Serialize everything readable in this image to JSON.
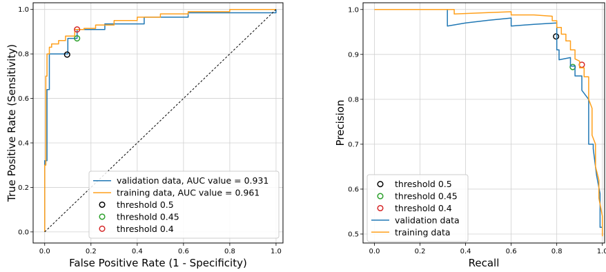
{
  "chart_data": [
    {
      "type": "line",
      "title": "",
      "xlabel": "False Positive Rate (1 - Specificity)",
      "ylabel": "True Positive Rate (Sensitivity)",
      "xlim": [
        -0.05,
        1.03
      ],
      "ylim": [
        -0.05,
        1.03
      ],
      "xticks": [
        0.0,
        0.2,
        0.4,
        0.6,
        0.8,
        1.0
      ],
      "yticks": [
        0.0,
        0.2,
        0.4,
        0.6,
        0.8,
        1.0
      ],
      "tick_labels": {
        "x": [
          "0.0",
          "0.2",
          "0.4",
          "0.6",
          "0.8",
          "1.0"
        ],
        "y": [
          "0.0",
          "0.2",
          "0.4",
          "0.6",
          "0.8",
          "1.0"
        ]
      },
      "grid": true,
      "legend_position": "lower-right",
      "series": [
        {
          "name": "validation data, AUC value = 0.931",
          "kind": "line",
          "color": "#1f77b4",
          "x": [
            0.0,
            0.0,
            0.01,
            0.01,
            0.02,
            0.02,
            0.04,
            0.04,
            0.1,
            0.1,
            0.14,
            0.14,
            0.26,
            0.26,
            0.43,
            0.43,
            0.62,
            0.62,
            1.0,
            1.0
          ],
          "y": [
            0.0,
            0.32,
            0.32,
            0.64,
            0.64,
            0.8,
            0.8,
            0.8,
            0.8,
            0.87,
            0.87,
            0.91,
            0.91,
            0.935,
            0.935,
            0.965,
            0.965,
            0.985,
            0.985,
            1.0
          ]
        },
        {
          "name": "training data, AUC value = 0.961",
          "kind": "line",
          "color": "#ff9f1a",
          "x": [
            0.0,
            0.0,
            0.005,
            0.005,
            0.01,
            0.01,
            0.02,
            0.02,
            0.03,
            0.03,
            0.06,
            0.06,
            0.09,
            0.09,
            0.13,
            0.13,
            0.17,
            0.17,
            0.22,
            0.22,
            0.3,
            0.3,
            0.4,
            0.4,
            0.5,
            0.5,
            0.62,
            0.62,
            0.8,
            0.8,
            1.0
          ],
          "y": [
            0.0,
            0.3,
            0.3,
            0.7,
            0.7,
            0.8,
            0.8,
            0.83,
            0.83,
            0.845,
            0.845,
            0.86,
            0.86,
            0.88,
            0.88,
            0.91,
            0.91,
            0.915,
            0.915,
            0.93,
            0.93,
            0.95,
            0.95,
            0.965,
            0.965,
            0.98,
            0.98,
            0.99,
            0.99,
            1.0,
            1.0
          ]
        },
        {
          "name": "threshold 0.5",
          "kind": "marker",
          "color": "#000000",
          "x": [
            0.097
          ],
          "y": [
            0.797
          ]
        },
        {
          "name": "threshold 0.45",
          "kind": "marker",
          "color": "#2ca02c",
          "x": [
            0.14
          ],
          "y": [
            0.87
          ]
        },
        {
          "name": "threshold 0.4",
          "kind": "marker",
          "color": "#d62728",
          "x": [
            0.14
          ],
          "y": [
            0.91
          ]
        },
        {
          "kind": "reference",
          "color": "#000000",
          "x": [
            0.0,
            1.0
          ],
          "y": [
            0.0,
            1.0
          ]
        }
      ]
    },
    {
      "type": "line",
      "title": "",
      "xlabel": "Recall",
      "ylabel": "Precision",
      "xlim": [
        -0.05,
        1.01
      ],
      "ylim": [
        0.48,
        1.015
      ],
      "xticks": [
        0.0,
        0.2,
        0.4,
        0.6,
        0.8,
        1.0
      ],
      "yticks": [
        0.5,
        0.6,
        0.7,
        0.8,
        0.9,
        1.0
      ],
      "tick_labels": {
        "x": [
          "0.0",
          "0.2",
          "0.4",
          "0.6",
          "0.8",
          "1.0"
        ],
        "y": [
          "0.5",
          "0.6",
          "0.7",
          "0.8",
          "0.9",
          "1.0"
        ]
      },
      "grid": true,
      "legend_position": "lower-left",
      "series": [
        {
          "name": "threshold 0.5",
          "kind": "marker",
          "color": "#000000",
          "x": [
            0.797
          ],
          "y": [
            0.94
          ]
        },
        {
          "name": "threshold 0.45",
          "kind": "marker",
          "color": "#2ca02c",
          "x": [
            0.87
          ],
          "y": [
            0.872
          ]
        },
        {
          "name": "threshold 0.4",
          "kind": "marker",
          "color": "#d62728",
          "x": [
            0.91
          ],
          "y": [
            0.877
          ]
        },
        {
          "name": "validation data",
          "kind": "line",
          "color": "#1f77b4",
          "x": [
            0.0,
            0.32,
            0.32,
            0.4,
            0.5,
            0.6,
            0.6,
            0.7,
            0.8,
            0.8,
            0.81,
            0.81,
            0.86,
            0.86,
            0.88,
            0.88,
            0.91,
            0.91,
            0.94,
            0.94,
            0.96,
            0.96,
            0.975,
            0.975,
            0.99,
            0.99,
            1.0
          ],
          "y": [
            1.0,
            1.0,
            0.963,
            0.97,
            0.976,
            0.981,
            0.963,
            0.967,
            0.97,
            0.91,
            0.91,
            0.888,
            0.893,
            0.874,
            0.874,
            0.852,
            0.852,
            0.82,
            0.8,
            0.7,
            0.7,
            0.69,
            0.63,
            0.63,
            0.59,
            0.515,
            0.515
          ]
        },
        {
          "name": "training data",
          "kind": "line",
          "color": "#ff9f1a",
          "x": [
            0.0,
            0.35,
            0.35,
            0.5,
            0.6,
            0.6,
            0.7,
            0.78,
            0.78,
            0.8,
            0.8,
            0.82,
            0.82,
            0.84,
            0.84,
            0.86,
            0.86,
            0.88,
            0.88,
            0.9,
            0.9,
            0.92,
            0.92,
            0.94,
            0.94,
            0.955,
            0.955,
            0.97,
            0.97,
            0.985,
            0.985,
            1.0,
            1.0
          ],
          "y": [
            1.0,
            1.0,
            0.99,
            0.993,
            0.995,
            0.988,
            0.988,
            0.985,
            0.975,
            0.975,
            0.96,
            0.96,
            0.945,
            0.945,
            0.93,
            0.93,
            0.91,
            0.91,
            0.89,
            0.885,
            0.87,
            0.87,
            0.85,
            0.85,
            0.8,
            0.78,
            0.72,
            0.7,
            0.65,
            0.62,
            0.58,
            0.54,
            0.495
          ]
        }
      ]
    }
  ]
}
